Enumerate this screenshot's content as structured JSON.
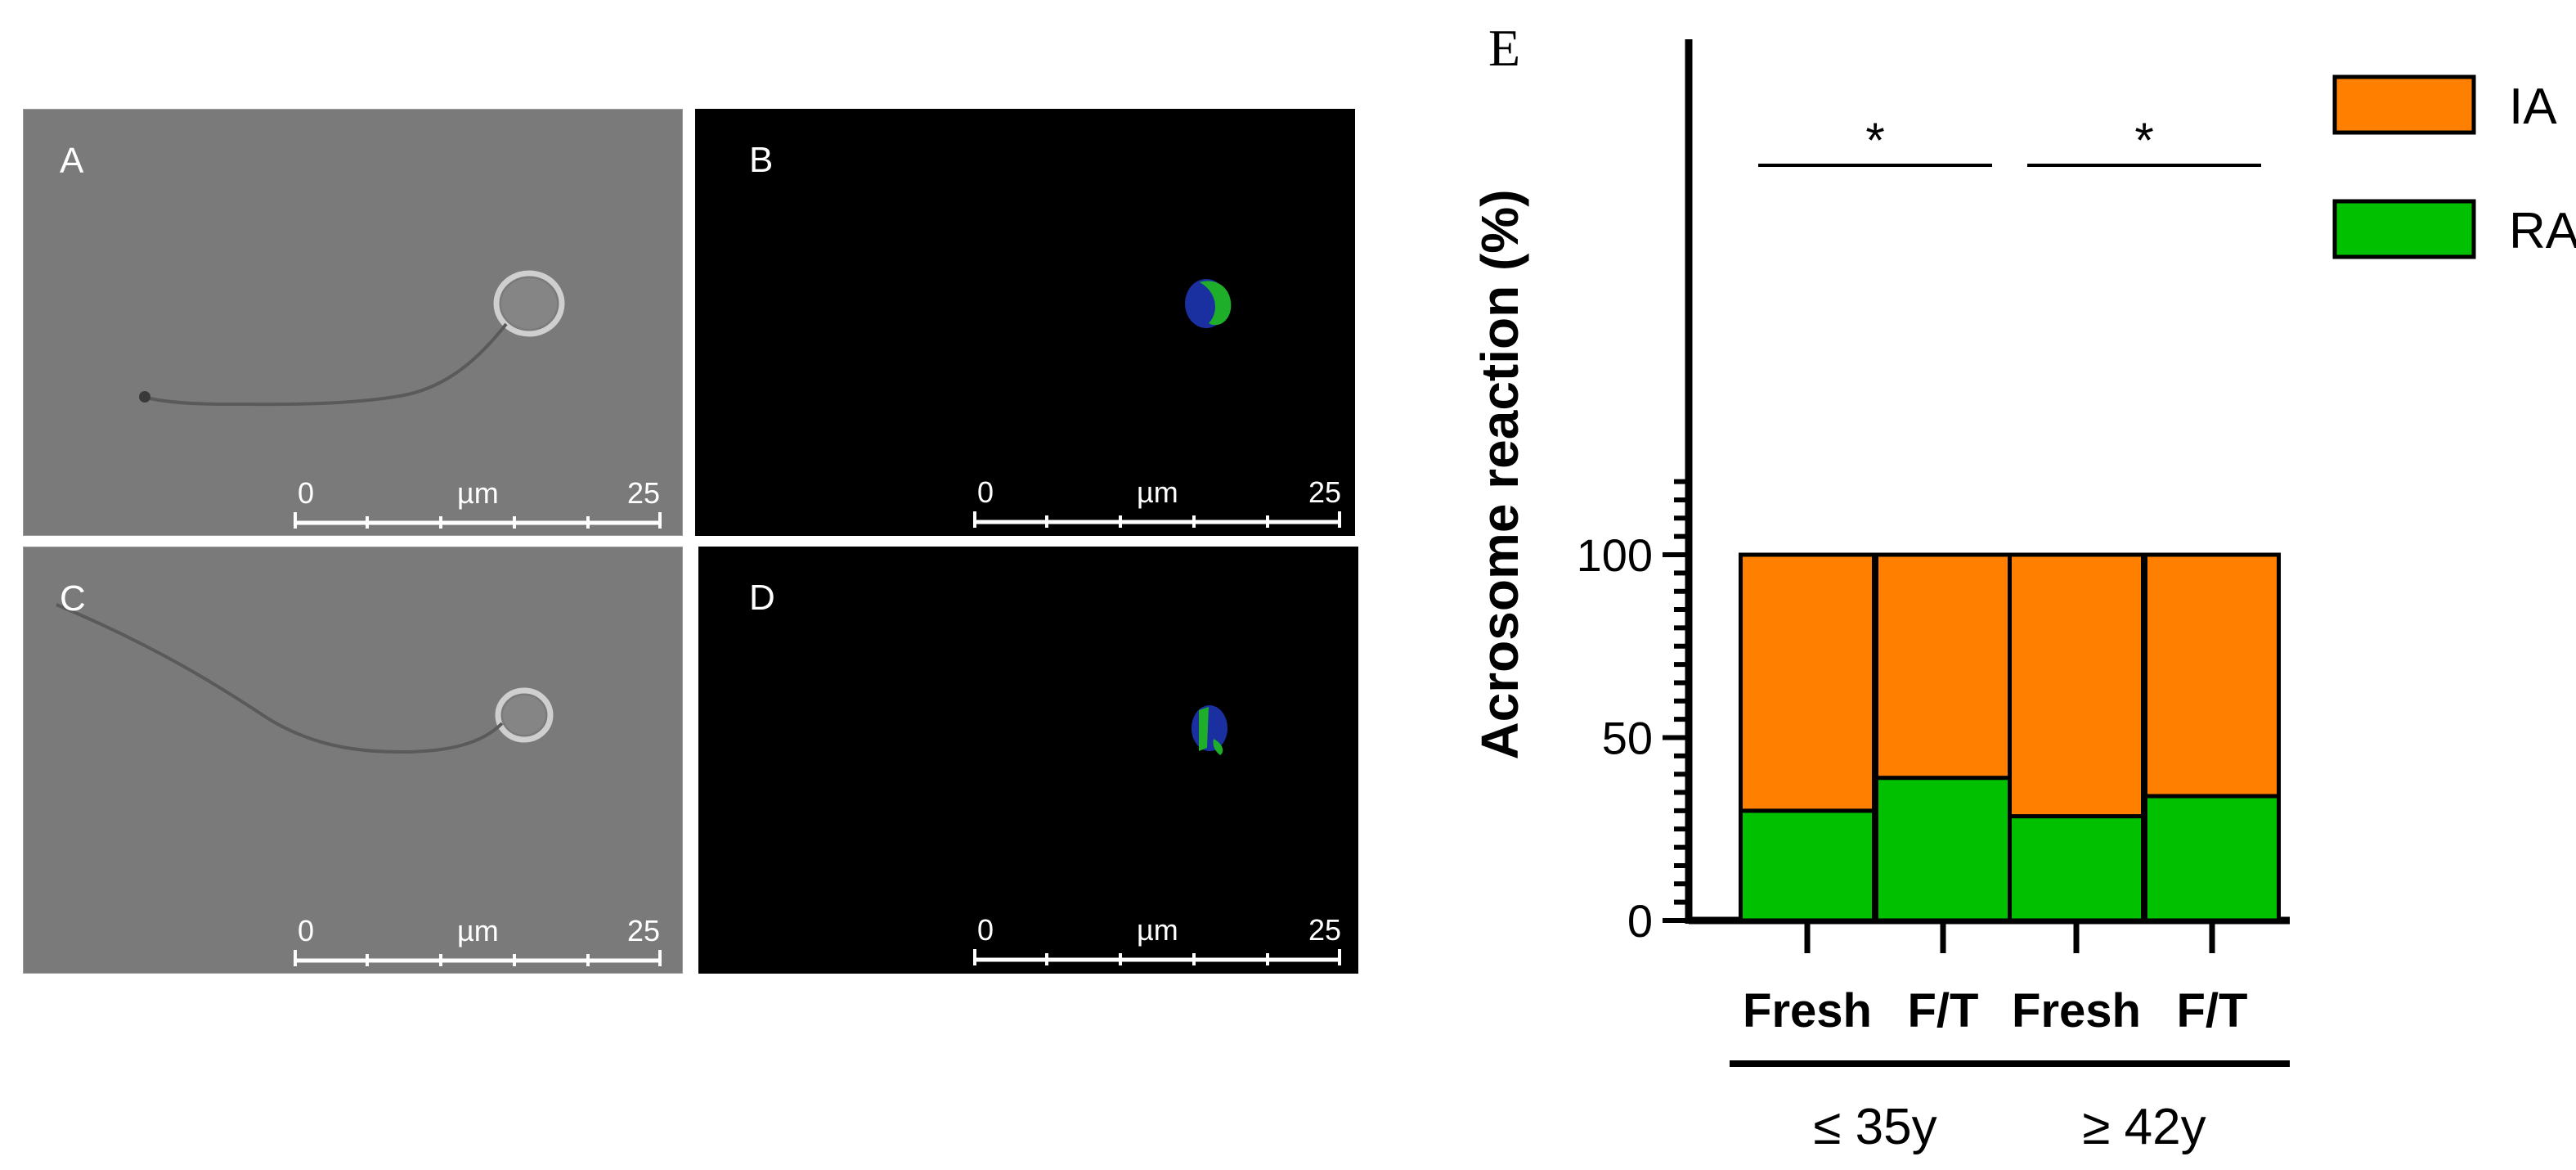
{
  "panels": [
    {
      "label": "A",
      "scale": {
        "start": "0",
        "unit": "µm",
        "end": "25"
      }
    },
    {
      "label": "B",
      "scale": {
        "start": "0",
        "unit": "µm",
        "end": "25"
      }
    },
    {
      "label": "C",
      "scale": {
        "start": "0",
        "unit": "µm",
        "end": "25"
      }
    },
    {
      "label": "D",
      "scale": {
        "start": "0",
        "unit": "µm",
        "end": "25"
      }
    }
  ],
  "chart_data": {
    "type": "bar",
    "stacked": true,
    "panel_label": "E",
    "title": "",
    "xlabel": "",
    "ylabel": "Acrosome reaction (%)",
    "ylim": [
      0,
      120
    ],
    "yticks": [
      0,
      50,
      100
    ],
    "categories": [
      "Fresh",
      "F/T",
      "Fresh",
      "F/T"
    ],
    "groups": [
      {
        "label": "≤ 35y",
        "categories": [
          0,
          1
        ]
      },
      {
        "label": "≥ 42y",
        "categories": [
          2,
          3
        ]
      }
    ],
    "series": [
      {
        "name": "RA",
        "color": "#00c000",
        "values": [
          30,
          39,
          28.5,
          34
        ]
      },
      {
        "name": "IA",
        "color": "#ff8000",
        "values": [
          70,
          61,
          71.5,
          66
        ]
      }
    ],
    "significance": [
      {
        "between": [
          0,
          1
        ],
        "label": "*"
      },
      {
        "between": [
          2,
          3
        ],
        "label": "*"
      }
    ],
    "legend": {
      "position": "right",
      "order": [
        "IA",
        "RA"
      ]
    },
    "grid": false
  }
}
